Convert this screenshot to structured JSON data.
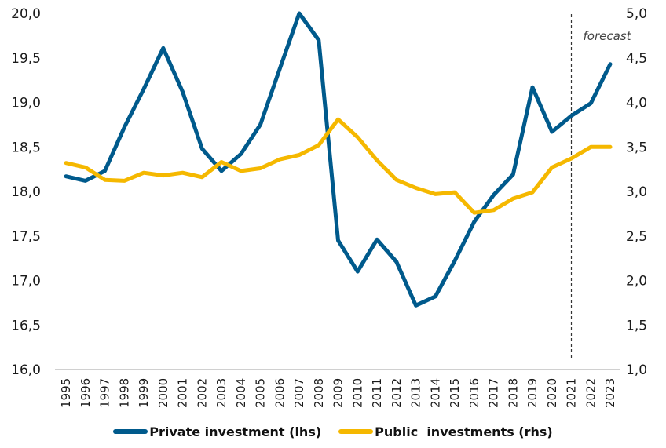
{
  "chart_data": {
    "type": "line",
    "title": "",
    "xlabel": "",
    "ylabel": "",
    "categories": [
      "1995",
      "1996",
      "1997",
      "1998",
      "1999",
      "2000",
      "2001",
      "2002",
      "2003",
      "2004",
      "2005",
      "2006",
      "2007",
      "2008",
      "2009",
      "2010",
      "2011",
      "2012",
      "2013",
      "2014",
      "2015",
      "2016",
      "2017",
      "2018",
      "2019",
      "2020",
      "2021",
      "2022",
      "2023"
    ],
    "ylim": [
      16.0,
      20.0
    ],
    "y2lim": [
      1.0,
      5.0
    ],
    "yticks": [
      "16,0",
      "16,5",
      "17,0",
      "17,5",
      "18,0",
      "18,5",
      "19,0",
      "19,5",
      "20,0"
    ],
    "y2ticks": [
      "1,0",
      "1,5",
      "2,0",
      "2,5",
      "3,0",
      "3,5",
      "4,0",
      "4,5",
      "5,0"
    ],
    "grid": false,
    "legend_position": "bottom",
    "series": [
      {
        "name": "Private investment (lhs)",
        "axis": "left",
        "color": "#005a8c",
        "values": [
          18.17,
          18.12,
          18.23,
          18.72,
          19.15,
          19.61,
          19.12,
          18.48,
          18.23,
          18.42,
          18.75,
          19.38,
          20.0,
          19.7,
          17.45,
          17.1,
          17.46,
          17.21,
          16.72,
          16.82,
          17.22,
          17.66,
          17.96,
          18.19,
          19.17,
          18.67,
          18.85,
          18.99,
          19.43
        ]
      },
      {
        "name": "Public  investments (rhs)",
        "axis": "right",
        "color": "#f5b800",
        "values": [
          3.32,
          3.27,
          3.13,
          3.12,
          3.21,
          3.18,
          3.21,
          3.16,
          3.33,
          3.23,
          3.26,
          3.36,
          3.41,
          3.52,
          3.81,
          3.61,
          3.35,
          3.13,
          3.04,
          2.97,
          2.99,
          2.76,
          2.79,
          2.92,
          2.99,
          3.27,
          3.37,
          3.5,
          3.5
        ]
      }
    ],
    "annotations": [
      {
        "text": "forecast",
        "at_category": "2021",
        "style": "dashed-vertical-line"
      }
    ]
  }
}
